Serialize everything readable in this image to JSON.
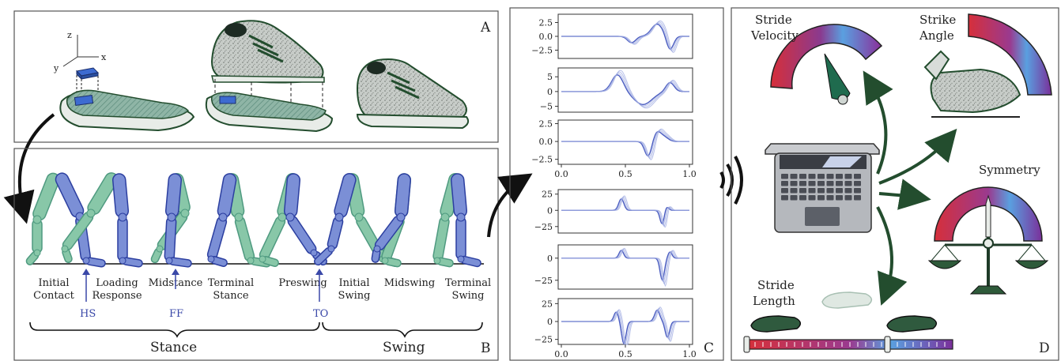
{
  "panel_letters": {
    "a": "A",
    "b": "B",
    "c": "C",
    "d": "D"
  },
  "axes3d": {
    "x": "x",
    "y": "y",
    "z": "z"
  },
  "gait_phases": [
    {
      "line1": "Initial",
      "line2": "Contact"
    },
    {
      "line1": "Loading",
      "line2": "Response"
    },
    {
      "line1": "Midstance",
      "line2": ""
    },
    {
      "line1": "Terminal",
      "line2": "Stance"
    },
    {
      "line1": "Preswing",
      "line2": ""
    },
    {
      "line1": "Initial",
      "line2": "Swing"
    },
    {
      "line1": "Midswing",
      "line2": ""
    },
    {
      "line1": "Terminal",
      "line2": "Swing"
    }
  ],
  "events": {
    "hs": "HS",
    "ff": "FF",
    "to": "TO"
  },
  "phase_groups": {
    "stance": "Stance",
    "swing": "Swing"
  },
  "plots": {
    "top_group": [
      {
        "yticks": [
          "2.5",
          "0.0",
          "−2.5"
        ]
      },
      {
        "yticks": [
          "5",
          "0",
          "−5"
        ]
      },
      {
        "yticks": [
          "2.5",
          "0.0",
          "−2.5"
        ]
      }
    ],
    "top_xticks": [
      "0.0",
      "0.5",
      "1.0"
    ],
    "bottom_group": [
      {
        "yticks": [
          "25",
          "0",
          "−25"
        ]
      },
      {
        "yticks": [
          "0",
          "−25"
        ]
      },
      {
        "yticks": [
          "25",
          "0",
          "−25"
        ]
      }
    ],
    "bottom_xticks": [
      "0.0",
      "0.5",
      "1.0"
    ]
  },
  "metrics": {
    "stride_velocity": {
      "line1": "Stride",
      "line2": "Velocity"
    },
    "strike_angle": {
      "line1": "Strike",
      "line2": "Angle"
    },
    "symmetry": "Symmetry",
    "stride_length": {
      "line1": "Stride",
      "line2": "Length"
    }
  },
  "colors": {
    "blue": "#7b8fd6",
    "green": "#88c7a8",
    "dark_green": "#234d2e",
    "red": "#d62f3a",
    "purple": "#6b3d8f"
  }
}
